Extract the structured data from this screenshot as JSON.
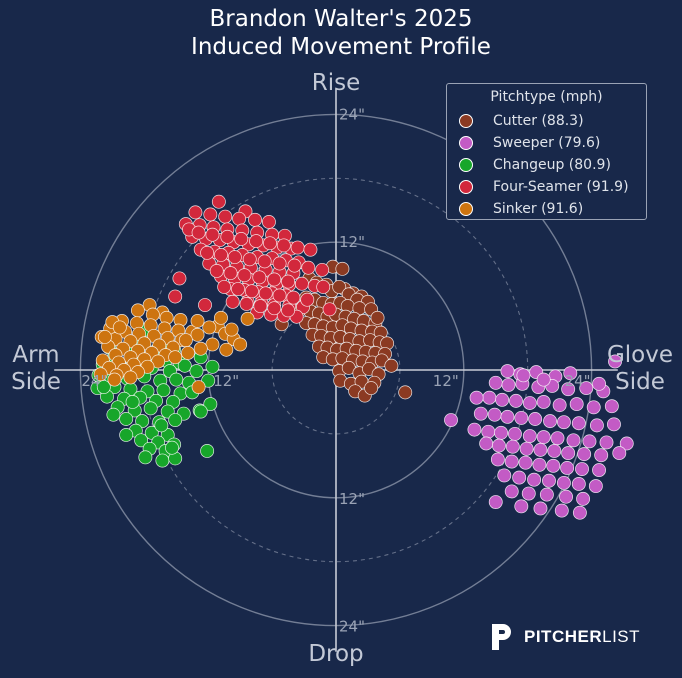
{
  "title_line1": "Brandon Walter's 2025",
  "title_line2": "Induced Movement Profile",
  "axis_words": {
    "top": "Rise",
    "bottom": "Drop",
    "left": "Arm\nSide",
    "right": "Glove\nSide"
  },
  "legend": {
    "title": "Pitchtype (mph)",
    "items": [
      {
        "label": "Cutter (88.3)",
        "color": "#8b3a22"
      },
      {
        "label": "Sweeper (79.6)",
        "color": "#c35bc5"
      },
      {
        "label": "Changeup (80.9)",
        "color": "#17a62a"
      },
      {
        "label": "Four-Seamer (91.9)",
        "color": "#d2283c"
      },
      {
        "label": "Sinker (91.6)",
        "color": "#cd7410"
      }
    ]
  },
  "branding": {
    "bold": "PITCHER",
    "light": "LIST"
  },
  "chart_data": {
    "type": "scatter",
    "title": "Brandon Walter's 2025 Induced Movement Profile",
    "coordinate": "polar-style horizontal/vertical movement (inches)",
    "axis_limits_in": 28,
    "rings_in": [
      6,
      12,
      18,
      24
    ],
    "ring_labels": [
      "12\"",
      "24\"",
      "12\"",
      "24\"",
      "24\"",
      "12\"",
      "12\"",
      "24\""
    ],
    "series": [
      {
        "name": "Cutter (88.3)",
        "color": "#8b3a22",
        "x": [
          -0.3,
          0.6,
          -2.5,
          -1.8,
          -0.9,
          0.8,
          1.6,
          2.4,
          -0.4,
          0.3,
          1.2,
          2.0,
          3.0,
          -2.8,
          -2.0,
          -1.2,
          -0.4,
          0.4,
          1.1,
          2.2,
          3.3,
          -3.3,
          -2.4,
          -1.6,
          -0.8,
          0.0,
          0.9,
          1.7,
          2.6,
          3.7,
          -2.8,
          -2.0,
          -1.2,
          -0.3,
          0.6,
          1.4,
          2.4,
          3.4,
          4.2,
          -2.2,
          -1.4,
          -0.5,
          0.4,
          1.3,
          2.2,
          3.2,
          4.1,
          4.8,
          -1.6,
          -0.8,
          0.1,
          1.0,
          1.9,
          2.8,
          3.7,
          4.6,
          -1.2,
          -0.3,
          0.6,
          1.6,
          2.5,
          3.4,
          4.3,
          0.3,
          1.2,
          2.2,
          3.1,
          4.0,
          5.2,
          0.4,
          1.4,
          2.4,
          3.6,
          1.8,
          2.7,
          3.3,
          -4.1,
          -5.1,
          3.9,
          6.5
        ],
        "y": [
          9.7,
          9.5,
          8.6,
          8.2,
          8.0,
          7.6,
          7.2,
          6.9,
          7.4,
          7.8,
          7.1,
          6.6,
          6.4,
          6.8,
          6.6,
          6.3,
          6.2,
          6.3,
          6.0,
          5.8,
          5.7,
          5.7,
          5.5,
          5.3,
          5.0,
          5.2,
          5.0,
          4.8,
          4.6,
          4.4,
          4.4,
          4.3,
          4.1,
          4.0,
          4.2,
          3.9,
          3.7,
          3.6,
          3.5,
          3.3,
          3.2,
          3.0,
          3.1,
          2.9,
          2.7,
          2.8,
          2.6,
          2.5,
          2.2,
          2.1,
          1.9,
          2.0,
          1.8,
          1.7,
          1.6,
          1.5,
          1.2,
          1.0,
          1.1,
          0.9,
          0.8,
          0.7,
          0.9,
          -0.1,
          0.2,
          -0.3,
          0.1,
          -0.4,
          0.4,
          -1.0,
          -1.3,
          -1.1,
          -1.2,
          -2.0,
          -2.4,
          -1.7,
          5.4,
          4.3,
          4.9,
          -2.1
        ]
      },
      {
        "name": "Sweeper (79.6)",
        "color": "#c35bc5",
        "x": [
          16.1,
          17.3,
          18.8,
          20.6,
          22.0,
          26.2,
          15.0,
          16.2,
          17.5,
          19.0,
          20.3,
          21.8,
          23.5,
          25.1,
          14.4,
          15.6,
          16.9,
          18.2,
          19.5,
          21.0,
          22.6,
          24.2,
          25.9,
          13.6,
          14.9,
          16.1,
          17.4,
          18.7,
          20.1,
          21.4,
          22.8,
          24.5,
          26.1,
          13.0,
          14.3,
          15.5,
          16.8,
          18.2,
          19.5,
          20.8,
          22.3,
          23.8,
          25.4,
          27.3,
          14.1,
          15.3,
          16.6,
          17.9,
          19.2,
          20.5,
          21.8,
          23.3,
          24.9,
          26.6,
          15.2,
          16.5,
          17.8,
          19.1,
          20.4,
          21.7,
          23.1,
          24.7,
          15.8,
          17.2,
          18.6,
          20.0,
          21.4,
          22.8,
          24.4,
          16.5,
          18.1,
          19.8,
          21.6,
          23.2,
          17.4,
          19.2,
          21.2,
          22.9,
          13.2,
          17.6,
          19.5,
          24.7,
          15.0,
          10.8
        ],
        "y": [
          -0.1,
          -0.4,
          -0.2,
          -0.6,
          -0.3,
          0.8,
          -1.2,
          -1.4,
          -1.3,
          -1.6,
          -1.5,
          -1.8,
          -1.7,
          -2.0,
          -2.6,
          -2.8,
          -2.9,
          -3.1,
          -3.0,
          -3.3,
          -3.2,
          -3.5,
          -3.4,
          -4.1,
          -4.2,
          -4.4,
          -4.5,
          -4.6,
          -4.8,
          -4.9,
          -5.0,
          -5.2,
          -5.1,
          -5.6,
          -5.8,
          -5.9,
          -6.0,
          -6.2,
          -6.3,
          -6.4,
          -6.6,
          -6.7,
          -6.8,
          -6.9,
          -6.9,
          -7.1,
          -7.2,
          -7.4,
          -7.5,
          -7.6,
          -7.8,
          -7.9,
          -8.0,
          -7.8,
          -8.4,
          -8.6,
          -8.7,
          -8.9,
          -9.0,
          -9.2,
          -9.3,
          -9.4,
          -9.9,
          -10.1,
          -10.3,
          -10.4,
          -10.6,
          -10.7,
          -10.9,
          -11.4,
          -11.6,
          -11.7,
          -11.9,
          -12.1,
          -12.8,
          -13.0,
          -13.2,
          -13.4,
          -2.6,
          -0.5,
          -0.9,
          -1.3,
          -12.4,
          -4.7
        ]
      },
      {
        "name": "Changeup (80.9)",
        "color": "#17a62a",
        "x": [
          -17.9,
          -15.8,
          -21.3,
          -19.8,
          -18.4,
          -16.9,
          -15.2,
          -20.8,
          -19.2,
          -17.6,
          -16.0,
          -14.7,
          -21.9,
          -20.3,
          -18.8,
          -17.3,
          -15.6,
          -14.2,
          -21.1,
          -19.6,
          -18.0,
          -16.5,
          -15.0,
          -13.8,
          -22.4,
          -20.8,
          -19.3,
          -17.7,
          -16.2,
          -14.6,
          -21.5,
          -19.9,
          -18.4,
          -16.9,
          -15.3,
          -20.5,
          -18.9,
          -17.4,
          -15.8,
          -14.3,
          -19.7,
          -18.2,
          -16.6,
          -15.1,
          -18.8,
          -17.3,
          -15.8,
          -18.3,
          -16.7,
          -15.2,
          -17.5,
          -16.0,
          -17.9,
          -16.3,
          -15.1,
          -13.1,
          -12.0,
          -13.5,
          -12.8,
          -11.8,
          -12.7,
          -12.1,
          -11.6,
          -12.7,
          -22.3,
          -21.8,
          -19.1,
          -16.4,
          -15.4,
          -20.9,
          -19.7
        ],
        "y": [
          3.8,
          2.6,
          2.1,
          2.0,
          2.3,
          1.8,
          1.9,
          1.3,
          1.0,
          1.2,
          0.9,
          0.7,
          0.5,
          0.3,
          0.1,
          0.2,
          -0.1,
          0.4,
          -0.7,
          -0.8,
          -0.6,
          -1.0,
          -0.9,
          -1.2,
          -1.7,
          -1.6,
          -1.8,
          -2.0,
          -1.9,
          -2.2,
          -2.5,
          -2.7,
          -2.6,
          -2.9,
          -3.0,
          -3.5,
          -3.8,
          -3.6,
          -3.9,
          -4.1,
          -4.6,
          -4.8,
          -4.9,
          -4.7,
          -5.7,
          -5.9,
          -6.1,
          -6.6,
          -6.8,
          -7.0,
          -7.4,
          -7.6,
          -8.2,
          -8.5,
          -8.3,
          -0.1,
          -1.0,
          -2.1,
          -3.8,
          -3.2,
          -3.9,
          -7.6,
          0.3,
          1.2,
          -0.5,
          -1.6,
          -3.0,
          -5.2,
          -7.3,
          -4.2,
          -6.1
        ]
      },
      {
        "name": "Four-Seamer (91.9)",
        "color": "#d2283c",
        "x": [
          -11.0,
          -8.5,
          -13.2,
          -11.8,
          -10.4,
          -9.1,
          -7.6,
          -6.3,
          -14.1,
          -12.8,
          -11.5,
          -10.2,
          -8.8,
          -7.4,
          -6.0,
          -4.8,
          -13.5,
          -12.2,
          -10.9,
          -9.6,
          -8.2,
          -6.8,
          -5.5,
          -4.2,
          -12.7,
          -11.4,
          -10.1,
          -8.8,
          -7.4,
          -6.0,
          -4.7,
          -3.5,
          -11.9,
          -10.6,
          -9.3,
          -8.0,
          -6.6,
          -5.3,
          -4.0,
          -10.8,
          -9.5,
          -8.2,
          -6.9,
          -5.6,
          -4.4,
          -9.9,
          -8.6,
          -7.3,
          -6.0,
          -4.7,
          -8.3,
          -7.0,
          -5.8,
          -4.4,
          -3.1,
          -7.4,
          -6.1,
          -4.9,
          -3.7,
          -13.8,
          -12.9,
          -11.6,
          -10.2,
          -8.9,
          -7.5,
          -6.2,
          -4.9,
          -3.6,
          -2.4,
          -12.1,
          -10.8,
          -9.5,
          -8.1,
          -6.7,
          -5.3,
          -3.9,
          -2.6,
          -1.3,
          -11.2,
          -9.9,
          -8.6,
          -7.2,
          -5.8,
          -4.5,
          -3.2,
          -2.0,
          -10.5,
          -9.2,
          -7.9,
          -6.6,
          -5.3,
          -4.0,
          -2.7,
          -9.7,
          -8.4,
          -7.1,
          -5.8,
          -4.5,
          -14.7,
          -12.3,
          -15.1,
          -1.2,
          -0.6
        ],
        "y": [
          15.8,
          14.9,
          14.8,
          14.6,
          14.4,
          14.2,
          14.1,
          13.9,
          13.7,
          13.6,
          13.4,
          13.2,
          13.1,
          12.9,
          12.7,
          12.6,
          12.5,
          12.3,
          12.2,
          12.0,
          11.8,
          11.7,
          11.5,
          11.4,
          11.3,
          11.1,
          11.0,
          10.8,
          10.6,
          10.5,
          10.3,
          10.1,
          10.0,
          9.9,
          9.7,
          9.6,
          9.4,
          9.2,
          9.1,
          8.8,
          8.6,
          8.5,
          8.3,
          8.1,
          8.0,
          7.6,
          7.5,
          7.3,
          7.2,
          7.0,
          6.4,
          6.3,
          6.1,
          6.0,
          5.9,
          5.4,
          5.2,
          5.1,
          5.0,
          13.2,
          12.9,
          12.7,
          12.5,
          12.3,
          12.1,
          11.9,
          11.7,
          11.5,
          11.3,
          11.0,
          10.8,
          10.6,
          10.4,
          10.2,
          10.0,
          9.8,
          9.6,
          9.4,
          9.3,
          9.1,
          8.9,
          8.7,
          8.5,
          8.3,
          8.1,
          7.9,
          7.8,
          7.6,
          7.4,
          7.2,
          7.0,
          6.8,
          6.6,
          6.4,
          6.2,
          6.0,
          5.8,
          5.6,
          8.6,
          6.1,
          6.9,
          7.8,
          5.7
        ]
      },
      {
        "name": "Sinker (91.6)",
        "color": "#cd7410",
        "x": [
          -17.5,
          -16.3,
          -18.6,
          -17.2,
          -15.9,
          -14.6,
          -20.1,
          -18.7,
          -17.4,
          -16.1,
          -14.8,
          -13.5,
          -21.2,
          -19.8,
          -18.5,
          -17.1,
          -15.8,
          -14.5,
          -22.0,
          -20.7,
          -19.3,
          -18.0,
          -16.6,
          -15.3,
          -21.4,
          -20.0,
          -18.6,
          -17.3,
          -16.0,
          -20.7,
          -19.3,
          -18.0,
          -16.7,
          -21.9,
          -20.4,
          -19.0,
          -17.7,
          -21.3,
          -19.9,
          -18.6,
          -22.1,
          -20.6,
          -19.3,
          -11.1,
          -10.4,
          -9.6,
          -9.0,
          -10.8,
          -11.9,
          -13.0,
          -14.1,
          -10.3,
          -11.6,
          -12.7,
          -13.9,
          -15.1,
          -12.9,
          -21.0,
          -20.3,
          -21.7,
          -20.8,
          -13.0,
          -8.3,
          -9.8
        ],
        "y": [
          6.1,
          5.4,
          5.6,
          5.2,
          4.9,
          4.7,
          4.6,
          4.4,
          4.2,
          3.9,
          3.7,
          3.6,
          3.9,
          3.6,
          3.4,
          3.2,
          3.0,
          2.8,
          3.1,
          2.9,
          2.7,
          2.5,
          2.3,
          2.1,
          2.2,
          2.0,
          1.8,
          1.6,
          1.4,
          1.4,
          1.2,
          1.0,
          0.8,
          0.9,
          0.7,
          0.5,
          0.3,
          0.2,
          0.0,
          -0.2,
          -0.4,
          -0.5,
          -0.7,
          4.1,
          3.4,
          2.9,
          2.4,
          4.9,
          4.0,
          3.3,
          2.8,
          1.9,
          2.4,
          2.0,
          1.6,
          1.2,
          -1.6,
          4.5,
          4.0,
          3.1,
          -0.9,
          4.6,
          4.8,
          3.8
        ]
      }
    ]
  }
}
